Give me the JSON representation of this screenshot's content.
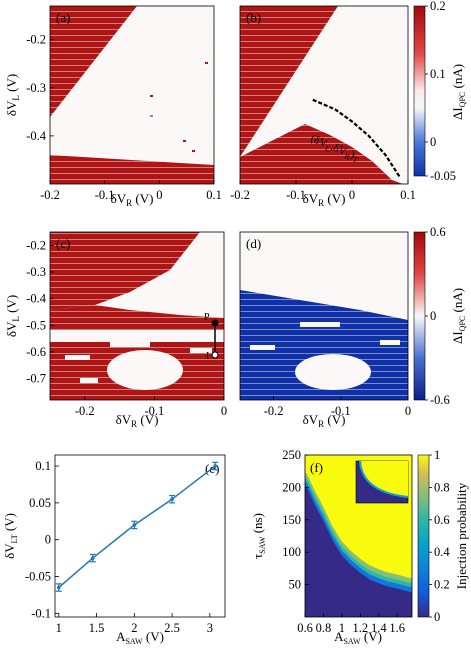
{
  "colors": {
    "red": "#b01515",
    "white": "#fbf7f7",
    "blue": "#1030a8",
    "line": "#2277bb",
    "parula_low": "#352a87",
    "parula_high": "#f9fb0e"
  },
  "chart_data": [
    {
      "id": "a",
      "panel_label": "(a)",
      "type": "heatmap",
      "xlabel": "δV_R (V)",
      "ylabel": "δV_L (V)",
      "xlim": [
        -0.2,
        0.1
      ],
      "ylim": [
        -0.5,
        -0.13
      ],
      "xticks": [
        "-0.2",
        "-0.1",
        "0",
        "0.1"
      ],
      "yticks": [
        "-0.2",
        "-0.3",
        "-0.4"
      ],
      "colorscale": [
        "blue",
        "white",
        "red"
      ],
      "zlim": [
        -0.05,
        0.2
      ],
      "regions": [
        {
          "description": "upper-left region: high current",
          "value": 0.2,
          "bounded_by": "line from (δV_R -0.2, δV_L -0.31) to (-0.06, -0.13)"
        },
        {
          "description": "lower region: high current",
          "value": 0.2,
          "bounded_by": "line from (-0.2, -0.43) to (0.1, -0.455)"
        },
        {
          "description": "central wedge",
          "value": 0.0
        }
      ]
    },
    {
      "id": "b",
      "panel_label": "(b)",
      "type": "heatmap",
      "xlabel": "δV_R (V)",
      "ylabel": "",
      "xlim": [
        -0.2,
        0.1
      ],
      "ylim": [
        -0.5,
        -0.13
      ],
      "xticks": [
        "-0.2",
        "-0.1",
        "0",
        "0.1"
      ],
      "yticks": [],
      "colorscale": [
        "blue",
        "white",
        "red"
      ],
      "zlim": [
        -0.05,
        0.2
      ],
      "colorbar": {
        "label": "ΔI_QPC (nA)",
        "ticks": [
          "0.2",
          "0.1",
          "0",
          "-0.05"
        ]
      },
      "annotation": "(δV_L^T, δV_R^T)",
      "transition_line": {
        "x": [
          -0.07,
          -0.03,
          0.0,
          0.03,
          0.06,
          0.085
        ],
        "y": [
          -0.325,
          -0.345,
          -0.37,
          -0.4,
          -0.44,
          -0.485
        ]
      },
      "regions": [
        {
          "description": "upper-left region: high current",
          "value": 0.2,
          "bounded_by": "line from (-0.2, -0.40) to (-0.05, -0.13)"
        },
        {
          "description": "lower region below transition line: high current",
          "value": 0.2
        },
        {
          "description": "central wedge",
          "value": 0.0
        }
      ]
    },
    {
      "id": "c",
      "panel_label": "(c)",
      "type": "heatmap",
      "xlabel": "δV_R (V)",
      "ylabel": "δV_L (V)",
      "xlim": [
        -0.25,
        0
      ],
      "ylim": [
        -0.78,
        -0.15
      ],
      "xticks": [
        "-0.2",
        "-0.1",
        "0"
      ],
      "yticks": [
        "-0.2",
        "-0.3",
        "-0.4",
        "-0.5",
        "-0.6",
        "-0.7"
      ],
      "colorscale": [
        "blue",
        "white",
        "red"
      ],
      "zlim": [
        -0.6,
        0.6
      ],
      "markers": [
        {
          "label": "P",
          "x": -0.005,
          "y": -0.54
        },
        {
          "label": "I",
          "x": -0.005,
          "y": -0.615
        }
      ],
      "regions": [
        {
          "description": "upper-left high-current region",
          "value": 0.6
        },
        {
          "description": "central wedge",
          "value": 0.0
        },
        {
          "description": "band at δV_L ≈ -0.5 to -0.55: high current",
          "value": 0.6
        },
        {
          "description": "lower region with white island near δV_R ≈ -0.12",
          "value": 0.6
        }
      ]
    },
    {
      "id": "d",
      "panel_label": "(d)",
      "type": "heatmap",
      "xlabel": "δV_R (V)",
      "ylabel": "",
      "xlim": [
        -0.25,
        0
      ],
      "ylim": [
        -0.78,
        -0.15
      ],
      "xticks": [
        "-0.2",
        "-0.1",
        "0"
      ],
      "yticks": [],
      "colorscale": [
        "blue",
        "white",
        "red"
      ],
      "zlim": [
        -0.6,
        0.6
      ],
      "colorbar": {
        "label": "ΔI_QPC (nA)",
        "ticks": [
          "0.6",
          "0",
          "-0.6"
        ]
      },
      "regions": [
        {
          "description": "upper region",
          "value": 0.0
        },
        {
          "description": "lower region below line from (-0.25, -0.45) to (0, -0.56)",
          "value": -0.6
        },
        {
          "description": "white island near δV_R ≈ -0.12, δV_L ≈ -0.68",
          "value": 0.0
        }
      ]
    },
    {
      "id": "e",
      "panel_label": "(e)",
      "type": "line",
      "xlabel": "A_SAW (V)",
      "ylabel": "δV_LT (V)",
      "xlim": [
        0.95,
        3.2
      ],
      "ylim": [
        -0.105,
        0.115
      ],
      "xticks": [
        "1",
        "1.5",
        "2",
        "2.5",
        "3"
      ],
      "yticks": [
        "0.1",
        "0.05",
        "0",
        "-0.05",
        "-0.1"
      ],
      "series": [
        {
          "x": [
            1.0,
            1.45,
            2.0,
            2.5,
            3.07
          ],
          "y": [
            -0.065,
            -0.025,
            0.02,
            0.055,
            0.1
          ],
          "err": [
            0.005,
            0.005,
            0.005,
            0.005,
            0.005
          ]
        }
      ]
    },
    {
      "id": "f",
      "panel_label": "(f)",
      "type": "heatmap",
      "xlabel": "A_SAW (V)",
      "ylabel": "τ_SAW (ns)",
      "xlim": [
        0.6,
        1.76
      ],
      "ylim": [
        0,
        250
      ],
      "xticks": [
        "0.6",
        "0.8",
        "1",
        "1.2",
        "1.4",
        "1.6"
      ],
      "yticks": [
        "250",
        "200",
        "150",
        "100",
        "50"
      ],
      "colorscale": "parula",
      "zlim": [
        0,
        1
      ],
      "colorbar": {
        "label": "Injection probability",
        "ticks": [
          "1",
          "0.8",
          "0.6",
          "0.4",
          "0.2",
          "0"
        ]
      },
      "inset": "smaller copy of the same map, no axes labels",
      "boundary": {
        "A_SAW": [
          0.62,
          0.7,
          0.8,
          0.9,
          1.0,
          1.1,
          1.2,
          1.3,
          1.4,
          1.5,
          1.6,
          1.7,
          1.76
        ],
        "tau_SAW": [
          200,
          175,
          148,
          118,
          95,
          80,
          68,
          58,
          52,
          47,
          44,
          40,
          38
        ]
      }
    }
  ]
}
